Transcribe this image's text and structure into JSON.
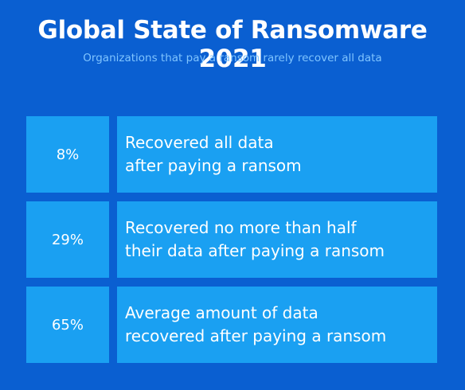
{
  "header": {
    "title": "Global State of Ransomware 2021",
    "subtitle": "Organizations that pay a ransom rarely recover all  data"
  },
  "stats": [
    {
      "value": "8%",
      "line1": "Recovered all data",
      "line2": "after paying a ransom"
    },
    {
      "value": "29%",
      "line1": "Recovered no more than half",
      "line2": "their data after paying a ransom"
    },
    {
      "value": "65%",
      "line1": "Average amount of data",
      "line2": "recovered after paying a ransom"
    }
  ],
  "colors": {
    "background": "#0a5fd1",
    "cell": "#1aa0f2",
    "subtitle": "#7fc4ff"
  }
}
